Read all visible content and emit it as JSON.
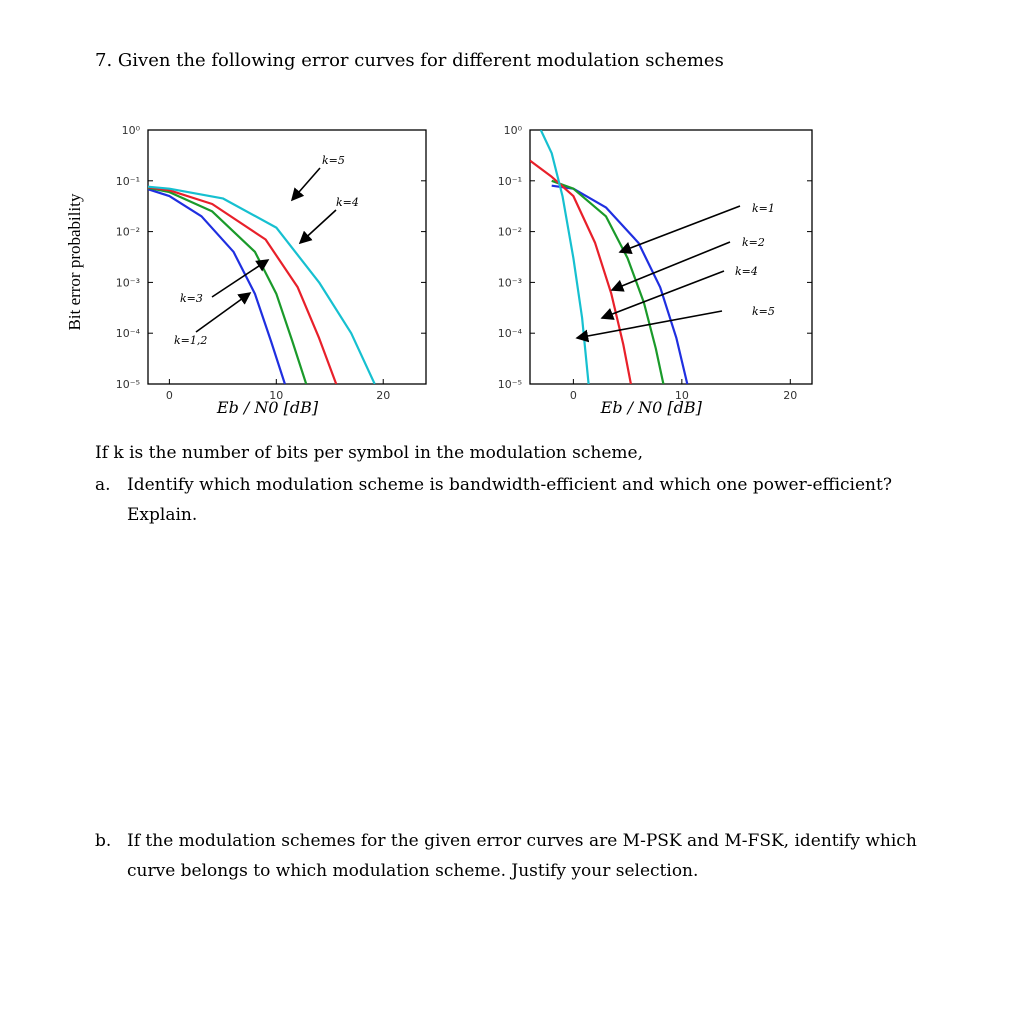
{
  "question": {
    "title": "7. Given the following error curves for different modulation schemes",
    "intro": "If k is the number of bits per symbol in the modulation scheme,",
    "part_a_label": "a.",
    "part_a_text": "Identify which modulation scheme is bandwidth-efficient and which one power-efficient? Explain.",
    "part_b_label": "b.",
    "part_b_text": "If the modulation schemes for the given error curves are M-PSK and M-FSK, identify which curve belongs to which modulation scheme. Justify your selection."
  },
  "chart_data": [
    {
      "type": "line",
      "ylabel": "Bit error probability",
      "xlabel": "Eb / N0 [dB]",
      "x_ticks": [
        "0",
        "10",
        "20"
      ],
      "y_ticks": [
        "10⁰",
        "10⁻¹",
        "10⁻²",
        "10⁻³",
        "10⁻⁴",
        "10⁻⁵"
      ],
      "xlim": [
        -2,
        24
      ],
      "ylim_log10": [
        -5,
        0
      ],
      "series": [
        {
          "name": "k=1,2",
          "color": "#1f2fe0",
          "x": [
            -3,
            0,
            3,
            6,
            8,
            9.5,
            10.8
          ],
          "y": [
            0.08,
            0.05,
            0.02,
            0.004,
            0.0006,
            7e-05,
            1e-05
          ]
        },
        {
          "name": "k=3",
          "color": "#1a9a2a",
          "x": [
            -3,
            0,
            4,
            8,
            10,
            11.5,
            12.8
          ],
          "y": [
            0.08,
            0.06,
            0.025,
            0.004,
            0.0006,
            7e-05,
            1e-05
          ]
        },
        {
          "name": "k=4",
          "color": "#e8202a",
          "x": [
            -3,
            0,
            4,
            9,
            12,
            14,
            15.6
          ],
          "y": [
            0.08,
            0.065,
            0.035,
            0.007,
            0.0008,
            8e-05,
            1e-05
          ]
        },
        {
          "name": "k=5",
          "color": "#16c0d0",
          "x": [
            -3,
            0,
            5,
            10,
            14,
            17,
            19.2
          ],
          "y": [
            0.08,
            0.07,
            0.045,
            0.012,
            0.001,
            0.0001,
            1e-05
          ]
        }
      ],
      "annotations": [
        {
          "text": "k=5",
          "target": "k=5"
        },
        {
          "text": "k=4",
          "target": "k=4"
        },
        {
          "text": "k=3",
          "target": "k=3"
        },
        {
          "text": "k=1,2",
          "target": "k=1,2"
        }
      ]
    },
    {
      "type": "line",
      "xlabel": "Eb / N0 [dB]",
      "x_ticks": [
        "0",
        "10",
        "20"
      ],
      "y_ticks": [
        "10⁰",
        "10⁻¹",
        "10⁻²",
        "10⁻³",
        "10⁻⁴",
        "10⁻⁵"
      ],
      "xlim": [
        -4,
        22
      ],
      "ylim_log10": [
        -5,
        0
      ],
      "series": [
        {
          "name": "k=1",
          "color": "#1f2fe0",
          "x": [
            -2,
            0,
            3,
            6,
            8,
            9.5,
            10.5
          ],
          "y": [
            0.08,
            0.07,
            0.03,
            0.006,
            0.0008,
            8e-05,
            1e-05
          ]
        },
        {
          "name": "k=2",
          "color": "#1a9a2a",
          "x": [
            -2,
            0,
            3,
            5,
            6.5,
            7.6,
            8.3
          ],
          "y": [
            0.1,
            0.07,
            0.02,
            0.003,
            0.0004,
            5e-05,
            1e-05
          ]
        },
        {
          "name": "k=4",
          "color": "#e8202a",
          "x": [
            -4,
            -2,
            0,
            2,
            3.5,
            4.6,
            5.3
          ],
          "y": [
            0.25,
            0.12,
            0.05,
            0.006,
            0.0006,
            6e-05,
            1e-05
          ]
        },
        {
          "name": "k=5",
          "color": "#16c0d0",
          "x": [
            -3,
            -2,
            -1,
            0,
            0.8,
            1.4
          ],
          "y": [
            1.0,
            0.35,
            0.05,
            0.003,
            0.0002,
            1e-05
          ]
        }
      ],
      "annotations": [
        {
          "text": "k=1",
          "target": "k=1"
        },
        {
          "text": "k=2",
          "target": "k=2"
        },
        {
          "text": "k=4",
          "target": "k=4"
        },
        {
          "text": "k=5",
          "target": "k=5"
        }
      ]
    }
  ]
}
